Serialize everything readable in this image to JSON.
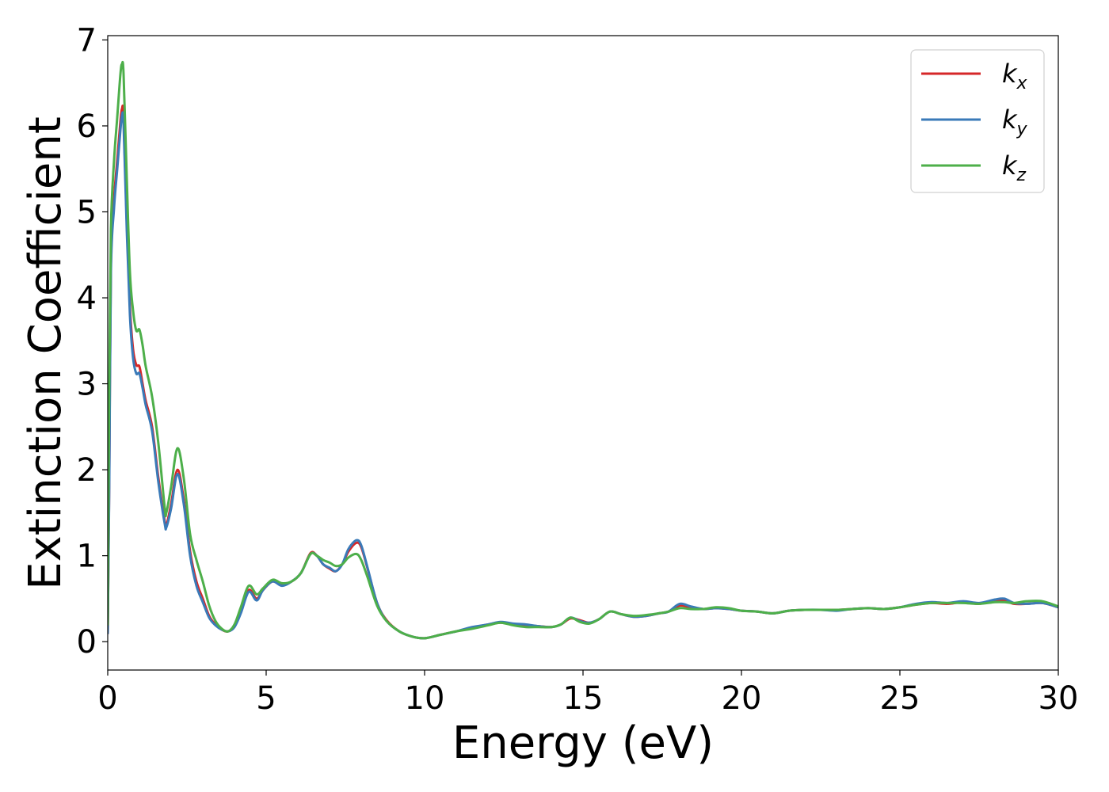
{
  "chart_data": {
    "type": "line",
    "title": "",
    "xlabel": "Energy (eV)",
    "ylabel": "Extinction Coefficient",
    "xlim": [
      0,
      30
    ],
    "ylim": [
      -0.33,
      7.05
    ],
    "xticks": [
      0,
      5,
      10,
      15,
      20,
      25,
      30
    ],
    "yticks": [
      0,
      1,
      2,
      3,
      4,
      5,
      6,
      7
    ],
    "grid": false,
    "legend_position": "top-right",
    "series": [
      {
        "name": "k_x",
        "label_base": "k",
        "label_sub": "x",
        "color": "#d62728",
        "x": [
          0,
          0.05,
          0.1,
          0.2,
          0.3,
          0.4,
          0.45,
          0.5,
          0.6,
          0.7,
          0.8,
          0.9,
          1.0,
          1.1,
          1.2,
          1.4,
          1.6,
          1.8,
          1.85,
          2.0,
          2.2,
          2.4,
          2.6,
          2.8,
          3.0,
          3.2,
          3.4,
          3.6,
          3.8,
          4.0,
          4.2,
          4.45,
          4.7,
          4.9,
          5.2,
          5.5,
          5.8,
          6.1,
          6.4,
          6.6,
          6.8,
          7.0,
          7.2,
          7.4,
          7.6,
          7.85,
          8.0,
          8.2,
          8.5,
          8.8,
          9.2,
          9.6,
          10.0,
          10.5,
          11.0,
          11.5,
          12.0,
          12.4,
          12.8,
          13.2,
          13.6,
          14.0,
          14.3,
          14.6,
          14.9,
          15.2,
          15.5,
          15.85,
          16.2,
          16.6,
          17.0,
          17.4,
          17.7,
          18.05,
          18.4,
          18.8,
          19.2,
          19.6,
          20.0,
          20.5,
          21.0,
          21.5,
          22.0,
          22.5,
          23.0,
          23.5,
          24.0,
          24.5,
          25.0,
          25.5,
          26.0,
          26.5,
          27.0,
          27.5,
          28.0,
          28.3,
          28.6,
          29.0,
          29.5,
          30.0
        ],
        "y": [
          0.1,
          2.0,
          4.4,
          5.15,
          5.6,
          6.05,
          6.2,
          6.1,
          4.9,
          3.9,
          3.4,
          3.22,
          3.2,
          3.0,
          2.8,
          2.5,
          1.9,
          1.4,
          1.35,
          1.6,
          2.0,
          1.65,
          1.05,
          0.7,
          0.5,
          0.3,
          0.2,
          0.14,
          0.12,
          0.18,
          0.35,
          0.6,
          0.5,
          0.6,
          0.7,
          0.66,
          0.7,
          0.8,
          1.03,
          1.0,
          0.9,
          0.85,
          0.82,
          0.9,
          1.05,
          1.15,
          1.1,
          0.85,
          0.45,
          0.25,
          0.12,
          0.06,
          0.04,
          0.08,
          0.12,
          0.16,
          0.2,
          0.22,
          0.2,
          0.19,
          0.18,
          0.17,
          0.2,
          0.27,
          0.25,
          0.22,
          0.26,
          0.35,
          0.32,
          0.29,
          0.3,
          0.33,
          0.35,
          0.42,
          0.4,
          0.38,
          0.39,
          0.38,
          0.36,
          0.35,
          0.33,
          0.36,
          0.37,
          0.37,
          0.37,
          0.38,
          0.39,
          0.38,
          0.4,
          0.43,
          0.45,
          0.44,
          0.46,
          0.44,
          0.48,
          0.48,
          0.44,
          0.44,
          0.45,
          0.4
        ]
      },
      {
        "name": "k_y",
        "label_base": "k",
        "label_sub": "y",
        "color": "#3a7ab8",
        "x": [
          0,
          0.05,
          0.1,
          0.2,
          0.3,
          0.4,
          0.45,
          0.5,
          0.6,
          0.7,
          0.8,
          0.9,
          1.0,
          1.1,
          1.2,
          1.4,
          1.6,
          1.8,
          1.85,
          2.0,
          2.2,
          2.4,
          2.6,
          2.8,
          3.0,
          3.2,
          3.4,
          3.6,
          3.8,
          4.0,
          4.2,
          4.45,
          4.7,
          4.9,
          5.2,
          5.5,
          5.8,
          6.1,
          6.4,
          6.6,
          6.8,
          7.0,
          7.2,
          7.4,
          7.6,
          7.85,
          8.0,
          8.2,
          8.5,
          8.8,
          9.2,
          9.6,
          10.0,
          10.5,
          11.0,
          11.5,
          12.0,
          12.4,
          12.8,
          13.2,
          13.6,
          14.0,
          14.3,
          14.6,
          14.9,
          15.2,
          15.5,
          15.85,
          16.2,
          16.6,
          17.0,
          17.4,
          17.7,
          18.05,
          18.4,
          18.8,
          19.2,
          19.6,
          20.0,
          20.5,
          21.0,
          21.5,
          22.0,
          22.5,
          23.0,
          23.5,
          24.0,
          24.5,
          25.0,
          25.5,
          26.0,
          26.5,
          27.0,
          27.5,
          28.0,
          28.3,
          28.6,
          29.0,
          29.5,
          30.0
        ],
        "y": [
          0.1,
          1.9,
          4.3,
          5.05,
          5.5,
          5.95,
          6.12,
          6.02,
          4.8,
          3.8,
          3.3,
          3.12,
          3.12,
          2.95,
          2.75,
          2.45,
          1.85,
          1.37,
          1.33,
          1.55,
          1.95,
          1.6,
          1.0,
          0.65,
          0.46,
          0.28,
          0.19,
          0.14,
          0.12,
          0.17,
          0.33,
          0.58,
          0.48,
          0.6,
          0.7,
          0.65,
          0.7,
          0.8,
          1.02,
          1.0,
          0.9,
          0.86,
          0.82,
          0.9,
          1.08,
          1.18,
          1.12,
          0.86,
          0.45,
          0.24,
          0.12,
          0.06,
          0.04,
          0.08,
          0.12,
          0.17,
          0.2,
          0.23,
          0.21,
          0.2,
          0.18,
          0.17,
          0.2,
          0.28,
          0.24,
          0.22,
          0.26,
          0.35,
          0.32,
          0.29,
          0.3,
          0.33,
          0.35,
          0.44,
          0.41,
          0.38,
          0.39,
          0.38,
          0.36,
          0.35,
          0.33,
          0.36,
          0.37,
          0.37,
          0.36,
          0.38,
          0.39,
          0.38,
          0.4,
          0.44,
          0.46,
          0.45,
          0.47,
          0.45,
          0.49,
          0.5,
          0.45,
          0.44,
          0.45,
          0.4
        ]
      },
      {
        "name": "k_z",
        "label_base": "k",
        "label_sub": "z",
        "color": "#4daf4a",
        "x": [
          0,
          0.05,
          0.1,
          0.2,
          0.3,
          0.4,
          0.45,
          0.5,
          0.6,
          0.7,
          0.8,
          0.9,
          1.0,
          1.1,
          1.2,
          1.4,
          1.6,
          1.8,
          1.85,
          2.0,
          2.2,
          2.4,
          2.6,
          2.8,
          3.0,
          3.2,
          3.4,
          3.6,
          3.8,
          4.0,
          4.2,
          4.45,
          4.7,
          4.9,
          5.2,
          5.5,
          5.8,
          6.1,
          6.4,
          6.6,
          6.8,
          7.0,
          7.2,
          7.4,
          7.6,
          7.85,
          8.0,
          8.2,
          8.5,
          8.8,
          9.2,
          9.6,
          10.0,
          10.5,
          11.0,
          11.5,
          12.0,
          12.4,
          12.8,
          13.2,
          13.6,
          14.0,
          14.3,
          14.6,
          14.9,
          15.2,
          15.5,
          15.85,
          16.2,
          16.6,
          17.0,
          17.4,
          17.7,
          18.05,
          18.4,
          18.8,
          19.2,
          19.6,
          20.0,
          20.5,
          21.0,
          21.5,
          22.0,
          22.5,
          23.0,
          23.5,
          24.0,
          24.5,
          25.0,
          25.5,
          26.0,
          26.5,
          27.0,
          27.5,
          28.0,
          28.3,
          28.6,
          29.0,
          29.5,
          30.0
        ],
        "y": [
          0.2,
          3.0,
          4.8,
          5.6,
          6.1,
          6.6,
          6.72,
          6.6,
          5.4,
          4.3,
          3.85,
          3.62,
          3.63,
          3.45,
          3.2,
          2.85,
          2.3,
          1.55,
          1.5,
          1.8,
          2.25,
          1.9,
          1.25,
          0.95,
          0.7,
          0.42,
          0.24,
          0.15,
          0.12,
          0.2,
          0.4,
          0.65,
          0.55,
          0.62,
          0.72,
          0.68,
          0.7,
          0.8,
          1.02,
          1.0,
          0.95,
          0.92,
          0.88,
          0.9,
          0.98,
          1.02,
          0.95,
          0.75,
          0.42,
          0.24,
          0.12,
          0.06,
          0.04,
          0.08,
          0.12,
          0.15,
          0.19,
          0.22,
          0.19,
          0.17,
          0.17,
          0.17,
          0.2,
          0.28,
          0.23,
          0.21,
          0.26,
          0.35,
          0.32,
          0.3,
          0.31,
          0.33,
          0.35,
          0.39,
          0.38,
          0.38,
          0.4,
          0.39,
          0.36,
          0.35,
          0.33,
          0.36,
          0.37,
          0.37,
          0.37,
          0.38,
          0.39,
          0.38,
          0.4,
          0.43,
          0.45,
          0.45,
          0.45,
          0.44,
          0.46,
          0.46,
          0.45,
          0.47,
          0.47,
          0.41
        ]
      }
    ]
  }
}
